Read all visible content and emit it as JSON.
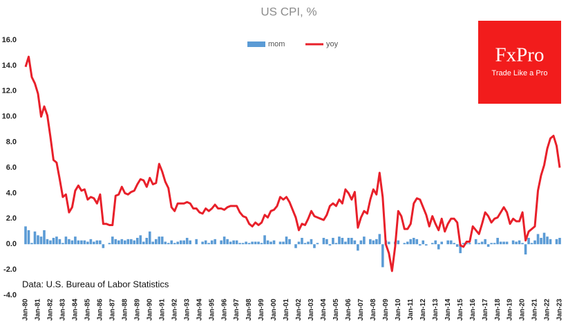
{
  "chart_data": {
    "type": "combo",
    "title": "US CPI, %",
    "source": "Data: U.S. Bureau of Labor Statistics",
    "logo": {
      "brand": "FxPro",
      "tagline": "Trade Like a Pro"
    },
    "ylim": [
      -4,
      16
    ],
    "yticks": [
      {
        "value": -4,
        "label": "-4.0"
      },
      {
        "value": -2,
        "label": "-2.0"
      },
      {
        "value": 0,
        "label": "0.0"
      },
      {
        "value": 2,
        "label": "2.0"
      },
      {
        "value": 4,
        "label": "4.0"
      },
      {
        "value": 6,
        "label": "6.0"
      },
      {
        "value": 8,
        "label": "8.0"
      },
      {
        "value": 10,
        "label": "10.0"
      },
      {
        "value": 12,
        "label": "12.0"
      },
      {
        "value": 14,
        "label": "14.0"
      },
      {
        "value": 16,
        "label": "16.0"
      }
    ],
    "grid": false,
    "categories": [
      "Jan-80",
      null,
      null,
      null,
      "Jan-81",
      null,
      null,
      null,
      "Jan-82",
      null,
      null,
      null,
      "Jan-83",
      null,
      null,
      null,
      "Jan-84",
      null,
      null,
      null,
      "Jan-85",
      null,
      null,
      null,
      "Jan-86",
      null,
      null,
      null,
      "Jan-87",
      null,
      null,
      null,
      "Jan-88",
      null,
      null,
      null,
      "Jan-89",
      null,
      null,
      null,
      "Jan-90",
      null,
      null,
      null,
      "Jan-91",
      null,
      null,
      null,
      "Jan-92",
      null,
      null,
      null,
      "Jan-93",
      null,
      null,
      null,
      "Jan-94",
      null,
      null,
      null,
      "Jan-95",
      null,
      null,
      null,
      "Jan-96",
      null,
      null,
      null,
      "Jan-97",
      null,
      null,
      null,
      "Jan-98",
      null,
      null,
      null,
      "Jan-99",
      null,
      null,
      null,
      "Jan-00",
      null,
      null,
      null,
      "Jan-01",
      null,
      null,
      null,
      "Jan-02",
      null,
      null,
      null,
      "Jan-03",
      null,
      null,
      null,
      "Jan-04",
      null,
      null,
      null,
      "Jan-05",
      null,
      null,
      null,
      "Jan-06",
      null,
      null,
      null,
      "Jan-07",
      null,
      null,
      null,
      "Jan-08",
      null,
      null,
      null,
      "Jan-09",
      null,
      null,
      null,
      "Jan-10",
      null,
      null,
      null,
      "Jan-11",
      null,
      null,
      null,
      "Jan-12",
      null,
      null,
      null,
      "Jan-13",
      null,
      null,
      null,
      "Jan-14",
      null,
      null,
      null,
      "Jan-15",
      null,
      null,
      null,
      "Jan-16",
      null,
      null,
      null,
      "Jan-17",
      null,
      null,
      null,
      "Jan-18",
      null,
      null,
      null,
      "Jan-19",
      null,
      null,
      null,
      "Jan-20",
      null,
      null,
      null,
      "Jan-21",
      null,
      null,
      null,
      "Jan-22",
      null,
      null,
      null,
      "Jan-23"
    ],
    "series": [
      {
        "name": "mom",
        "type": "bar",
        "color": "#5b9bd5",
        "values": [
          1.4,
          1.1,
          0.1,
          1.0,
          0.7,
          0.6,
          1.1,
          0.4,
          0.3,
          0.5,
          0.6,
          0.4,
          0.1,
          0.6,
          0.4,
          0.3,
          0.6,
          0.3,
          0.3,
          0.3,
          0.2,
          0.4,
          0.2,
          0.3,
          0.3,
          -0.3,
          0.0,
          0.1,
          0.6,
          0.4,
          0.3,
          0.4,
          0.3,
          0.4,
          0.4,
          0.3,
          0.5,
          0.7,
          0.2,
          0.5,
          1.0,
          0.2,
          0.4,
          0.6,
          0.6,
          0.2,
          0.1,
          0.3,
          0.1,
          0.2,
          0.3,
          0.3,
          0.5,
          0.3,
          0.0,
          0.4,
          0.0,
          0.2,
          0.3,
          0.1,
          0.3,
          0.4,
          0.0,
          0.3,
          0.6,
          0.4,
          0.2,
          0.3,
          0.3,
          0.1,
          0.1,
          0.2,
          0.1,
          0.2,
          0.2,
          0.2,
          0.1,
          0.7,
          0.3,
          0.2,
          0.3,
          0.0,
          0.2,
          0.2,
          0.6,
          0.4,
          0.0,
          -0.3,
          0.2,
          0.5,
          0.1,
          0.2,
          0.4,
          -0.3,
          0.1,
          0.0,
          0.5,
          0.4,
          -0.1,
          0.5,
          0.1,
          0.6,
          0.5,
          0.2,
          0.5,
          0.5,
          0.3,
          -0.5,
          0.3,
          0.6,
          0.0,
          0.4,
          0.3,
          0.4,
          0.8,
          -1.8,
          0.3,
          0.2,
          0.0,
          0.2,
          0.3,
          0.0,
          0.1,
          0.2,
          0.4,
          0.5,
          0.4,
          -0.1,
          0.3,
          -0.1,
          0.0,
          0.1,
          0.3,
          -0.4,
          0.2,
          0.0,
          0.3,
          0.3,
          0.1,
          -0.2,
          -0.7,
          0.1,
          0.1,
          0.1,
          0.0,
          0.4,
          0.1,
          0.2,
          0.4,
          -0.2,
          0.1,
          0.1,
          0.5,
          0.2,
          0.2,
          0.2,
          0.0,
          0.3,
          0.2,
          0.3,
          0.1,
          -0.8,
          0.5,
          0.1,
          0.3,
          0.8,
          0.5,
          0.9,
          0.6,
          0.4,
          0.0,
          0.4,
          0.5
        ]
      },
      {
        "name": "yoy",
        "type": "line",
        "color": "#e8202a",
        "values": [
          13.9,
          14.7,
          13.1,
          12.6,
          11.8,
          10.0,
          10.8,
          10.1,
          8.4,
          6.6,
          6.4,
          5.1,
          3.7,
          3.9,
          2.5,
          2.9,
          4.2,
          4.6,
          4.2,
          4.3,
          3.5,
          3.7,
          3.6,
          3.2,
          3.9,
          1.6,
          1.6,
          1.5,
          1.5,
          3.8,
          3.9,
          4.5,
          4.0,
          3.9,
          4.1,
          4.2,
          4.7,
          5.1,
          5.0,
          4.5,
          5.2,
          4.7,
          4.8,
          6.3,
          5.7,
          4.9,
          4.4,
          2.9,
          2.6,
          3.2,
          3.2,
          3.2,
          3.3,
          3.2,
          2.8,
          2.8,
          2.5,
          2.4,
          2.8,
          2.6,
          2.8,
          3.1,
          2.8,
          2.8,
          2.7,
          2.9,
          3.0,
          3.0,
          3.0,
          2.5,
          2.2,
          2.1,
          1.6,
          1.4,
          1.7,
          1.5,
          1.7,
          2.3,
          2.1,
          2.6,
          2.7,
          3.0,
          3.7,
          3.5,
          3.7,
          3.3,
          2.7,
          2.1,
          1.1,
          1.6,
          1.5,
          2.0,
          2.6,
          2.2,
          2.1,
          2.0,
          1.9,
          2.3,
          3.0,
          3.2,
          3.0,
          3.5,
          3.2,
          4.3,
          4.0,
          3.5,
          4.1,
          1.3,
          2.1,
          2.6,
          2.4,
          3.5,
          4.3,
          3.9,
          5.6,
          3.7,
          0.0,
          -0.7,
          -2.1,
          -0.2,
          2.6,
          2.2,
          1.2,
          1.2,
          1.6,
          3.2,
          3.6,
          3.5,
          2.9,
          2.3,
          1.4,
          2.2,
          1.6,
          1.1,
          2.0,
          1.0,
          1.6,
          2.0,
          2.0,
          1.7,
          -0.1,
          -0.2,
          0.2,
          0.2,
          1.4,
          1.1,
          0.8,
          1.6,
          2.5,
          2.2,
          1.7,
          2.0,
          2.1,
          2.5,
          2.9,
          2.5,
          1.6,
          2.0,
          1.8,
          1.8,
          2.5,
          0.3,
          1.0,
          1.2,
          1.4,
          4.2,
          5.4,
          6.2,
          7.5,
          8.3,
          8.5,
          7.7,
          6.0
        ]
      }
    ]
  }
}
